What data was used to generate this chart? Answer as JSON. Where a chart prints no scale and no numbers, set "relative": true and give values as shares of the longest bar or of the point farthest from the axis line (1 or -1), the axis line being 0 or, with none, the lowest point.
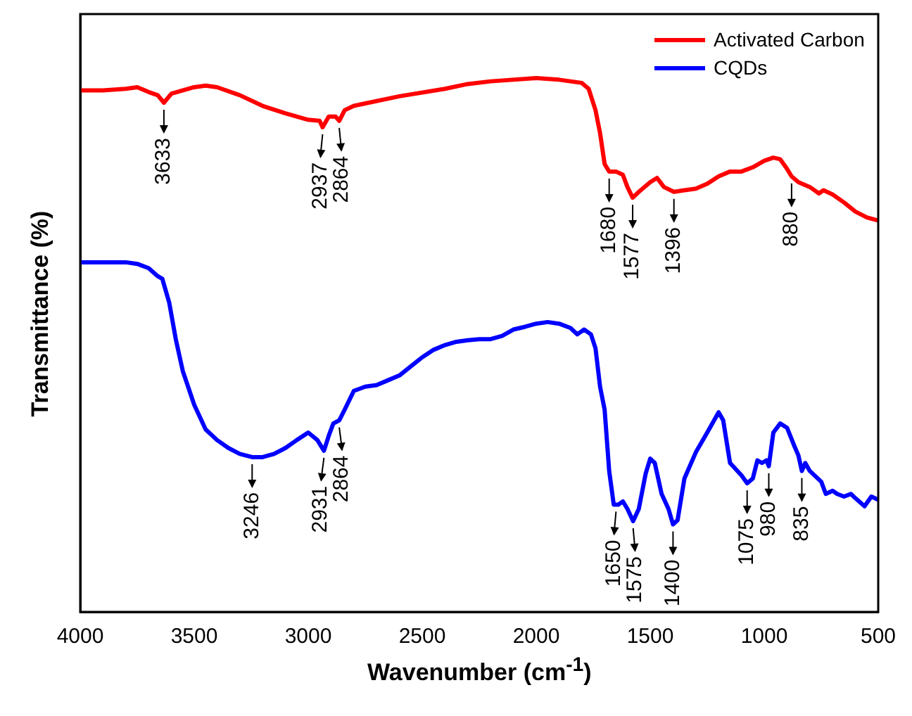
{
  "chart_data": {
    "type": "line",
    "xlabel": "Wavenumber (cm$^{-1}$)",
    "ylabel": "Transmittance (%)",
    "relative": true,
    "xlim": [
      4000,
      500
    ],
    "xticks": [
      4000,
      3500,
      3000,
      2500,
      2000,
      1500,
      1000,
      500
    ],
    "grid": false,
    "legend": "top right",
    "marker": "none",
    "line_style": "solid",
    "series": [
      {
        "name": "Activated Carbon",
        "color": "#ff0000",
        "x": [
          4000,
          3900,
          3800,
          3750,
          3700,
          3660,
          3633,
          3600,
          3500,
          3450,
          3400,
          3300,
          3200,
          3100,
          3000,
          2950,
          2937,
          2910,
          2880,
          2864,
          2840,
          2800,
          2600,
          2400,
          2300,
          2200,
          2000,
          1900,
          1800,
          1770,
          1740,
          1720,
          1700,
          1680,
          1650,
          1620,
          1600,
          1577,
          1550,
          1500,
          1470,
          1440,
          1396,
          1350,
          1300,
          1250,
          1200,
          1150,
          1100,
          1050,
          1000,
          960,
          930,
          900,
          880,
          850,
          800,
          760,
          740,
          700,
          650,
          600,
          550,
          500
        ],
        "values": [
          0.977,
          0.977,
          0.98,
          0.983,
          0.974,
          0.968,
          0.954,
          0.971,
          0.983,
          0.986,
          0.983,
          0.968,
          0.948,
          0.934,
          0.922,
          0.92,
          0.908,
          0.928,
          0.928,
          0.92,
          0.94,
          0.948,
          0.966,
          0.98,
          0.989,
          0.994,
          1.0,
          0.997,
          0.991,
          0.98,
          0.94,
          0.897,
          0.839,
          0.825,
          0.825,
          0.819,
          0.796,
          0.776,
          0.787,
          0.805,
          0.813,
          0.796,
          0.787,
          0.79,
          0.793,
          0.802,
          0.816,
          0.825,
          0.825,
          0.833,
          0.845,
          0.851,
          0.848,
          0.83,
          0.816,
          0.805,
          0.796,
          0.784,
          0.79,
          0.782,
          0.767,
          0.75,
          0.739,
          0.733
        ]
      },
      {
        "name": "CQDs",
        "color": "#0000ff",
        "x": [
          4000,
          3900,
          3800,
          3750,
          3700,
          3660,
          3640,
          3610,
          3580,
          3550,
          3500,
          3450,
          3400,
          3350,
          3300,
          3246,
          3200,
          3150,
          3100,
          3050,
          3000,
          2960,
          2931,
          2910,
          2890,
          2864,
          2840,
          2800,
          2750,
          2700,
          2650,
          2600,
          2550,
          2500,
          2450,
          2400,
          2350,
          2300,
          2250,
          2200,
          2150,
          2100,
          2050,
          2000,
          1950,
          1900,
          1850,
          1820,
          1790,
          1760,
          1740,
          1720,
          1700,
          1680,
          1660,
          1640,
          1620,
          1600,
          1575,
          1550,
          1520,
          1500,
          1480,
          1450,
          1420,
          1400,
          1380,
          1350,
          1300,
          1250,
          1200,
          1180,
          1150,
          1100,
          1075,
          1050,
          1030,
          1010,
          990,
          980,
          960,
          930,
          900,
          870,
          850,
          835,
          820,
          800,
          750,
          730,
          700,
          680,
          650,
          620,
          600,
          560,
          530,
          500
        ],
        "values": [
          0.655,
          0.655,
          0.655,
          0.652,
          0.644,
          0.629,
          0.624,
          0.58,
          0.509,
          0.451,
          0.388,
          0.342,
          0.322,
          0.307,
          0.296,
          0.29,
          0.29,
          0.296,
          0.307,
          0.322,
          0.336,
          0.322,
          0.302,
          0.33,
          0.353,
          0.359,
          0.379,
          0.414,
          0.422,
          0.425,
          0.434,
          0.443,
          0.46,
          0.477,
          0.491,
          0.5,
          0.506,
          0.509,
          0.511,
          0.511,
          0.517,
          0.529,
          0.534,
          0.54,
          0.543,
          0.54,
          0.532,
          0.52,
          0.529,
          0.52,
          0.494,
          0.422,
          0.379,
          0.264,
          0.201,
          0.201,
          0.207,
          0.193,
          0.17,
          0.193,
          0.259,
          0.287,
          0.279,
          0.221,
          0.193,
          0.164,
          0.172,
          0.25,
          0.299,
          0.336,
          0.374,
          0.359,
          0.279,
          0.256,
          0.241,
          0.25,
          0.284,
          0.279,
          0.284,
          0.273,
          0.336,
          0.353,
          0.345,
          0.313,
          0.293,
          0.264,
          0.279,
          0.264,
          0.244,
          0.221,
          0.227,
          0.221,
          0.216,
          0.221,
          0.213,
          0.198,
          0.216,
          0.21
        ]
      }
    ],
    "annotations": [
      {
        "text": "3633",
        "x": 3633,
        "y": 0.954
      },
      {
        "text": "2937",
        "x": 2937,
        "y": 0.908
      },
      {
        "text": "2864",
        "x": 2864,
        "y": 0.92
      },
      {
        "text": "1680",
        "x": 1680,
        "y": 0.825
      },
      {
        "text": "1577",
        "x": 1577,
        "y": 0.776
      },
      {
        "text": "1396",
        "x": 1396,
        "y": 0.787
      },
      {
        "text": "880",
        "x": 880,
        "y": 0.816
      },
      {
        "text": "3246",
        "x": 3246,
        "y": 0.29
      },
      {
        "text": "2931",
        "x": 2931,
        "y": 0.302
      },
      {
        "text": "2864",
        "x": 2864,
        "y": 0.359
      },
      {
        "text": "1650",
        "x": 1650,
        "y": 0.201
      },
      {
        "text": "1575",
        "x": 1575,
        "y": 0.17
      },
      {
        "text": "1400",
        "x": 1400,
        "y": 0.164
      },
      {
        "text": "1075",
        "x": 1075,
        "y": 0.241
      },
      {
        "text": "980",
        "x": 980,
        "y": 0.273
      },
      {
        "text": "835",
        "x": 835,
        "y": 0.264
      }
    ]
  }
}
